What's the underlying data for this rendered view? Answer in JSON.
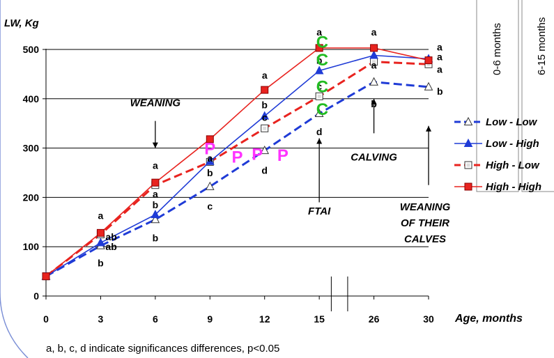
{
  "chart_data": {
    "type": "line",
    "ylabel": "LW, Kg",
    "xlabel": "Age, months",
    "categories": [
      "0",
      "3",
      "6",
      "9",
      "12",
      "15",
      "26",
      "30"
    ],
    "yticks": [
      "0",
      "100",
      "200",
      "300",
      "400",
      "500"
    ],
    "ylim": [
      0,
      500
    ],
    "grid": true,
    "legend_position": "right",
    "series": [
      {
        "name": "Low - Low",
        "color": "#1f3bd6",
        "dash": true,
        "marker": "triangle-open",
        "values": [
          40,
          102,
          155,
          222,
          295,
          370,
          434,
          424
        ]
      },
      {
        "name": "Low - High",
        "color": "#1f3bd6",
        "dash": false,
        "marker": "triangle-filled",
        "values": [
          40,
          108,
          165,
          273,
          365,
          457,
          488,
          481
        ]
      },
      {
        "name": "High - Low",
        "color": "#e8231f",
        "dash": true,
        "marker": "square-open",
        "values": [
          40,
          125,
          225,
          272,
          340,
          405,
          475,
          470
        ]
      },
      {
        "name": "High - High",
        "color": "#e8231f",
        "dash": false,
        "marker": "square-filled",
        "values": [
          40,
          128,
          230,
          318,
          418,
          503,
          503,
          478
        ]
      }
    ],
    "significance_letters": [
      {
        "text": "a",
        "x": 3,
        "y": 163
      },
      {
        "text": "ab",
        "x": 3,
        "y": 120
      },
      {
        "text": "ab",
        "x": 3,
        "y": 100
      },
      {
        "text": "b",
        "x": 3,
        "y": 67
      },
      {
        "text": "a",
        "x": 6,
        "y": 265
      },
      {
        "text": "a",
        "x": 6,
        "y": 207
      },
      {
        "text": "b",
        "x": 6,
        "y": 185
      },
      {
        "text": "b",
        "x": 6,
        "y": 118
      },
      {
        "text": "a",
        "x": 9,
        "y": 280
      },
      {
        "text": "b",
        "x": 9,
        "y": 250
      },
      {
        "text": "c",
        "x": 9,
        "y": 182
      },
      {
        "text": "a",
        "x": 12,
        "y": 448
      },
      {
        "text": "b",
        "x": 12,
        "y": 388
      },
      {
        "text": "c",
        "x": 12,
        "y": 362
      },
      {
        "text": "d",
        "x": 12,
        "y": 255
      },
      {
        "text": "a",
        "x": 15,
        "y": 535
      },
      {
        "text": "b",
        "x": 15,
        "y": 478
      },
      {
        "text": "c",
        "x": 15,
        "y": 425
      },
      {
        "text": "d",
        "x": 15,
        "y": 333
      },
      {
        "text": "a",
        "x": 26,
        "y": 535
      },
      {
        "text": "a",
        "x": 26,
        "y": 468
      },
      {
        "text": "b",
        "x": 26,
        "y": 390
      },
      {
        "text": "a",
        "x": 30,
        "y": 505
      },
      {
        "text": "a",
        "x": 30,
        "y": 485
      },
      {
        "text": "a",
        "x": 30,
        "y": 460
      },
      {
        "text": "b",
        "x": 30,
        "y": 415
      }
    ],
    "period_markers": [
      {
        "text": "P",
        "x": 9,
        "y": 300
      },
      {
        "text": "P",
        "x": 10.5,
        "y": 283
      },
      {
        "text": "P",
        "x": 11.6,
        "y": 289
      },
      {
        "text": "P",
        "x": 13,
        "y": 287
      },
      {
        "text": "C",
        "x": 15.6,
        "y": 516
      },
      {
        "text": "C",
        "x": 15.6,
        "y": 480
      },
      {
        "text": "C",
        "x": 15.6,
        "y": 426
      },
      {
        "text": "C",
        "x": 15.6,
        "y": 380
      }
    ],
    "period_colors": {
      "P": "#ff33ff",
      "C": "#22bb22"
    },
    "events": [
      {
        "label": "WEANING",
        "x": 6,
        "label_y": 385,
        "arrow_from": 355,
        "arrow_to": 300,
        "direction": "down"
      },
      {
        "label": "CALVING",
        "x": 26,
        "label_y": 275,
        "arrow_from": 330,
        "arrow_to": 400,
        "direction": "up"
      },
      {
        "label": "FTAI",
        "x": 15,
        "label_y": 165,
        "arrow_from": 190,
        "arrow_to": 320,
        "direction": "up"
      }
    ],
    "weaning_calves": {
      "lines": [
        "WEANING",
        "OF THEIR",
        "CALVES"
      ],
      "x": 30
    },
    "period_headers": [
      "0-6 months",
      "6-15 months"
    ],
    "footnote": "a, b, c, d indicate significances differences, p<0.05"
  }
}
